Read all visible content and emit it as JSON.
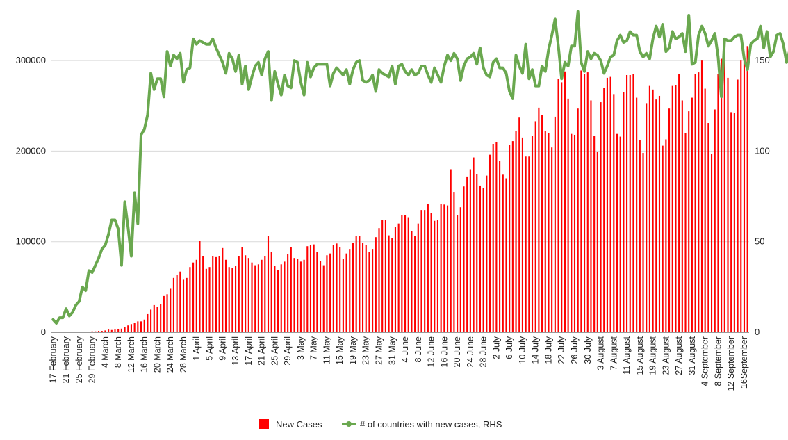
{
  "chart_data": {
    "type": "bar+line",
    "title": "",
    "xlabel": "",
    "ylabel": "",
    "x_tick_labels": [
      "17 February",
      "21 February",
      "25 February",
      "29 February",
      "4 March",
      "8 March",
      "12 March",
      "16 March",
      "20 March",
      "24 March",
      "28 March",
      "1 April",
      "5 April",
      "9 April",
      "13 April",
      "17 April",
      "21 April",
      "25 April",
      "29 April",
      "3 May",
      "7 May",
      "11 May",
      "15 May",
      "19 May",
      "23 May",
      "27 May",
      "31 May",
      "4 June",
      "8 June",
      "12 June",
      "16 June",
      "20 June",
      "24 June",
      "28 June",
      "2 July",
      "6 July",
      "10 July",
      "14 July",
      "18 July",
      "22 July",
      "26 July",
      "30 July",
      "3 August",
      "7 August",
      "11 August",
      "15 August",
      "19 August",
      "23 August",
      "27 August",
      "31 August",
      "4 September",
      "8 September",
      "12 September",
      "16September"
    ],
    "y_left": {
      "ylim": [
        0,
        350000
      ],
      "ticks": [
        0,
        100000,
        200000,
        300000
      ],
      "tick_labels": [
        "0",
        "100000",
        "200000",
        "300000"
      ]
    },
    "y_right": {
      "ylim": [
        0,
        175
      ],
      "ticks": [
        0,
        50,
        100,
        150
      ],
      "tick_labels": [
        "0",
        "50",
        "100",
        "150"
      ]
    },
    "grid": true,
    "legend_position": "bottom",
    "series": [
      {
        "name": "New Cases",
        "type": "bar",
        "axis": "left",
        "color": "#ff0000",
        "values": [
          500,
          500,
          500,
          500,
          500,
          500,
          500,
          500,
          500,
          500,
          700,
          700,
          1000,
          1000,
          1500,
          1500,
          2000,
          3000,
          2500,
          3000,
          3500,
          4000,
          5500,
          7500,
          9000,
          10000,
          12000,
          12000,
          14000,
          20000,
          25000,
          30000,
          28000,
          31000,
          40000,
          42000,
          48000,
          60000,
          63000,
          67000,
          58000,
          60000,
          72000,
          77000,
          80000,
          101000,
          84000,
          70000,
          72000,
          84000,
          83000,
          84000,
          93000,
          80000,
          72000,
          71000,
          73000,
          84000,
          94000,
          85000,
          82000,
          77000,
          74000,
          75000,
          80000,
          84000,
          106000,
          89000,
          73000,
          69000,
          75000,
          78000,
          86000,
          94000,
          82000,
          81000,
          78000,
          80000,
          95000,
          96000,
          97000,
          89000,
          79000,
          74000,
          85000,
          87000,
          96000,
          98000,
          94000,
          81000,
          87000,
          92000,
          99000,
          106000,
          106000,
          99000,
          96000,
          89000,
          92000,
          105000,
          115000,
          124000,
          124000,
          107000,
          104000,
          116000,
          120000,
          129000,
          129000,
          127000,
          112000,
          106000,
          120000,
          135000,
          135000,
          142000,
          132000,
          123000,
          124000,
          142000,
          141000,
          140000,
          180000,
          155000,
          129000,
          138000,
          161000,
          172000,
          180000,
          193000,
          175000,
          162000,
          159000,
          173000,
          196000,
          208000,
          210000,
          189000,
          174000,
          170000,
          207000,
          211000,
          222000,
          237000,
          215000,
          194000,
          194000,
          217000,
          233000,
          248000,
          240000,
          222000,
          220000,
          204000,
          238000,
          280000,
          276000,
          288000,
          258000,
          219000,
          218000,
          247000,
          289000,
          285000,
          287000,
          256000,
          217000,
          199000,
          254000,
          270000,
          281000,
          282000,
          263000,
          219000,
          216000,
          265000,
          284000,
          284000,
          285000,
          259000,
          212000,
          198000,
          253000,
          272000,
          268000,
          257000,
          261000,
          206000,
          213000,
          247000,
          272000,
          273000,
          285000,
          256000,
          220000,
          244000,
          259000,
          285000,
          287000,
          300000,
          269000,
          231000,
          197000,
          246000,
          285000,
          302000,
          310000,
          281000,
          243000,
          242000,
          279000,
          300000,
          304000,
          316000
        ]
      },
      {
        "name": "# of countries with new cases, RHS",
        "type": "line",
        "axis": "right",
        "color": "#6aa84f",
        "values": [
          7,
          5,
          8,
          8,
          13,
          9,
          11,
          15,
          17,
          25,
          23,
          34,
          33,
          37,
          41,
          46,
          48,
          54,
          62,
          62,
          57,
          37,
          72,
          58,
          42,
          77,
          60,
          109,
          112,
          120,
          143,
          134,
          140,
          140,
          130,
          155,
          147,
          153,
          151,
          154,
          138,
          145,
          146,
          162,
          159,
          161,
          160,
          159,
          159,
          162,
          157,
          153,
          149,
          143,
          154,
          151,
          144,
          153,
          137,
          147,
          134,
          141,
          147,
          149,
          142,
          151,
          155,
          128,
          144,
          137,
          131,
          142,
          136,
          135,
          150,
          149,
          138,
          131,
          149,
          141,
          146,
          148,
          148,
          148,
          148,
          136,
          143,
          146,
          144,
          142,
          145,
          137,
          145,
          149,
          150,
          139,
          138,
          139,
          142,
          133,
          145,
          143,
          142,
          141,
          147,
          137,
          147,
          148,
          144,
          142,
          145,
          142,
          143,
          147,
          147,
          142,
          138,
          146,
          142,
          138,
          147,
          153,
          150,
          154,
          151,
          139,
          147,
          151,
          152,
          154,
          148,
          157,
          146,
          142,
          141,
          149,
          151,
          146,
          146,
          143,
          133,
          129,
          153,
          147,
          143,
          159,
          140,
          145,
          136,
          136,
          147,
          144,
          156,
          164,
          173,
          158,
          140,
          149,
          147,
          158,
          158,
          177,
          149,
          144,
          155,
          151,
          154,
          153,
          150,
          143,
          147,
          152,
          153,
          161,
          164,
          160,
          161,
          166,
          164,
          164,
          155,
          152,
          154,
          151,
          162,
          169,
          163,
          170,
          155,
          157,
          166,
          162,
          163,
          165,
          155,
          175,
          148,
          149,
          164,
          169,
          165,
          158,
          161,
          165,
          152,
          130,
          162,
          161,
          161,
          163,
          164,
          164,
          151,
          145,
          159,
          161,
          162,
          169,
          157,
          166,
          152,
          155,
          164,
          165,
          159,
          149,
          156,
          156
        ]
      }
    ]
  }
}
